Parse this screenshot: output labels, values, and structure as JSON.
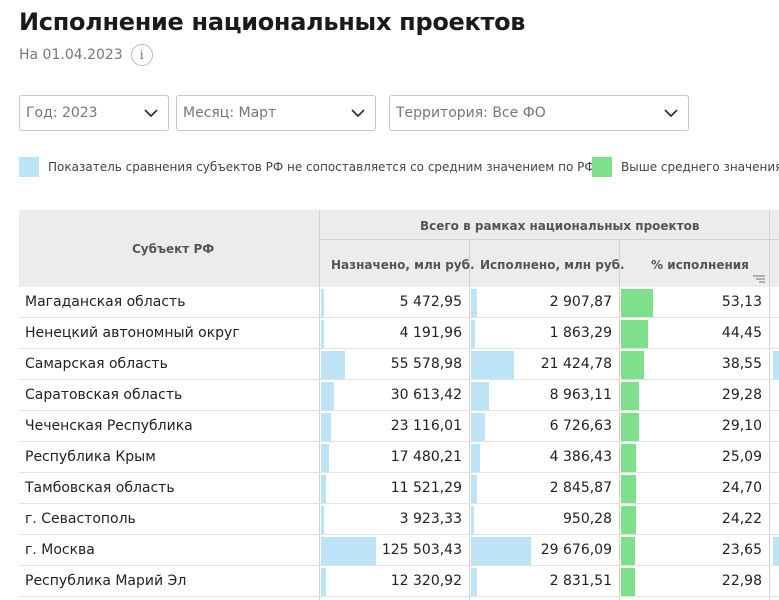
{
  "header": {
    "title": "Исполнение национальных проектов",
    "date": "На 01.04.2023",
    "info_glyph": "i"
  },
  "filters": {
    "year": "Год: 2023",
    "month": "Месяц: Март",
    "territory": "Территория: Все ФО"
  },
  "legend": [
    {
      "label": "Показатель сравнения субъектов РФ не сопоставляется со средним значением по РФ",
      "color": "#bde3f7"
    },
    {
      "label": "Выше среднего значения",
      "color": "#7ee08a"
    }
  ],
  "table": {
    "group_header": "Всего в рамках национальных проектов",
    "columns": {
      "subject": "Субъект РФ",
      "assigned": "Назначено, млн руб.",
      "executed": "Исполнено, млн руб.",
      "percent": "% исполнения"
    },
    "rows": [
      {
        "name": "Магаданская область",
        "assigned": "5 472,95",
        "executed": "2 907,87",
        "percent": "53,13",
        "assigned_val": 5472.95,
        "executed_val": 2907.87,
        "percent_val": 53.13,
        "next_col_bar": false
      },
      {
        "name": "Ненецкий автономный округ",
        "assigned": "4 191,96",
        "executed": "1 863,29",
        "percent": "44,45",
        "assigned_val": 4191.96,
        "executed_val": 1863.29,
        "percent_val": 44.45,
        "next_col_bar": false
      },
      {
        "name": "Самарская область",
        "assigned": "55 578,98",
        "executed": "21 424,78",
        "percent": "38,55",
        "assigned_val": 55578.98,
        "executed_val": 21424.78,
        "percent_val": 38.55,
        "next_col_bar": true
      },
      {
        "name": "Саратовская область",
        "assigned": "30 613,42",
        "executed": "8 963,11",
        "percent": "29,28",
        "assigned_val": 30613.42,
        "executed_val": 8963.11,
        "percent_val": 29.28,
        "next_col_bar": false
      },
      {
        "name": "Чеченская Республика",
        "assigned": "23 116,01",
        "executed": "6 726,63",
        "percent": "29,10",
        "assigned_val": 23116.01,
        "executed_val": 6726.63,
        "percent_val": 29.1,
        "next_col_bar": false
      },
      {
        "name": "Республика Крым",
        "assigned": "17 480,21",
        "executed": "4 386,43",
        "percent": "25,09",
        "assigned_val": 17480.21,
        "executed_val": 4386.43,
        "percent_val": 25.09,
        "next_col_bar": false
      },
      {
        "name": "Тамбовская область",
        "assigned": "11 521,29",
        "executed": "2 845,87",
        "percent": "24,70",
        "assigned_val": 11521.29,
        "executed_val": 2845.87,
        "percent_val": 24.7,
        "next_col_bar": false
      },
      {
        "name": "г. Севастополь",
        "assigned": "3 923,33",
        "executed": "950,28",
        "percent": "24,22",
        "assigned_val": 3923.33,
        "executed_val": 950.28,
        "percent_val": 24.22,
        "next_col_bar": false
      },
      {
        "name": "г. Москва",
        "assigned": "125 503,43",
        "executed": "29 676,09",
        "percent": "23,65",
        "assigned_val": 125503.43,
        "executed_val": 29676.09,
        "percent_val": 23.65,
        "next_col_bar": true
      },
      {
        "name": "Республика Марий Эл",
        "assigned": "12 320,92",
        "executed": "2 831,51",
        "percent": "22,98",
        "assigned_val": 12320.92,
        "executed_val": 2831.51,
        "percent_val": 22.98,
        "next_col_bar": false
      }
    ]
  },
  "colors": {
    "bar_blue": "#bde3f7",
    "bar_green": "#7ee08a",
    "header_bg": "#ececec"
  }
}
